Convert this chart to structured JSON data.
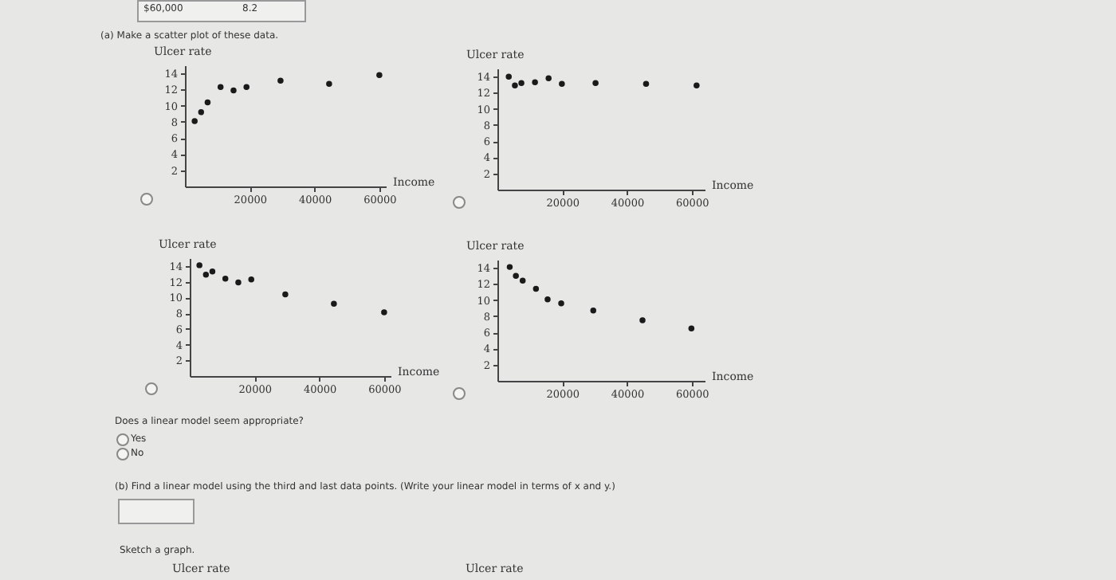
{
  "chart_data": [
    {
      "type": "scatter",
      "title": "(a) Make a scatter plot of these data.",
      "xlabel": "Income",
      "ylabel": "Ulcer rate",
      "x": [
        3000,
        5000,
        7000,
        11000,
        15000,
        19000,
        29500,
        44500,
        60000
      ],
      "series": [
        {
          "color": "#1a1a1a",
          "values": [
            8.1,
            9.2,
            10.4,
            12.3,
            11.9,
            12.3,
            13.1,
            12.7,
            13.8
          ]
        }
      ],
      "xlim": [
        0,
        62000
      ],
      "ylim": [
        0,
        15
      ],
      "xticks": [
        20000,
        40000,
        60000
      ],
      "yticks": [
        2,
        4,
        6,
        8,
        10,
        12,
        14
      ],
      "marker": "circle",
      "grid": false,
      "annotations": [
        "$60,000",
        "8.2"
      ]
    },
    {
      "type": "scatter",
      "xlabel": "Income",
      "ylabel": "Ulcer rate",
      "x": [
        3500,
        5400,
        7400,
        11600,
        15800,
        19900,
        30300,
        45900,
        61500
      ],
      "series": [
        {
          "color": "#1a1a1a",
          "values": [
            14.0,
            12.9,
            13.2,
            13.3,
            13.8,
            13.1,
            13.2,
            13.1,
            12.9
          ]
        }
      ],
      "xlim": [
        0,
        64000
      ],
      "ylim": [
        0,
        15
      ],
      "xticks": [
        20000,
        40000,
        60000
      ],
      "yticks": [
        2,
        4,
        6,
        8,
        10,
        12,
        14
      ],
      "marker": "circle",
      "grid": false
    },
    {
      "type": "scatter",
      "xlabel": "Income",
      "ylabel": "Ulcer rate",
      "x": [
        3000,
        5000,
        7000,
        11000,
        15000,
        19000,
        29500,
        44500,
        60000
      ],
      "series": [
        {
          "color": "#1a1a1a",
          "values": [
            14.1,
            12.9,
            13.3,
            12.4,
            11.9,
            12.3,
            10.4,
            9.2,
            8.1
          ]
        }
      ],
      "xlim": [
        0,
        62000
      ],
      "ylim": [
        0,
        15
      ],
      "xticks": [
        20000,
        40000,
        60000
      ],
      "yticks": [
        2,
        4,
        6,
        8,
        10,
        12,
        14
      ],
      "marker": "circle",
      "grid": false
    },
    {
      "type": "scatter",
      "xlabel": "Income",
      "ylabel": "Ulcer rate",
      "x": [
        3800,
        5700,
        7800,
        11900,
        15500,
        19700,
        29600,
        44800,
        59900
      ],
      "series": [
        {
          "color": "#1a1a1a",
          "values": [
            14.1,
            13.0,
            12.4,
            11.4,
            10.1,
            9.6,
            8.7,
            7.5,
            6.5
          ]
        }
      ],
      "xlim": [
        0,
        64000
      ],
      "ylim": [
        0,
        15
      ],
      "xticks": [
        20000,
        40000,
        60000
      ],
      "yticks": [
        2,
        4,
        6,
        8,
        10,
        12,
        14
      ],
      "marker": "circle",
      "grid": false,
      "annotations": [
        "Does a linear model seem appropriate?",
        "Yes",
        "No",
        "(b) Find a linear model using the third and last data points. (Write your linear model in terms of x and y.)",
        "Sketch a graph.",
        "Ulcer rate",
        "Ulcer rate"
      ]
    }
  ]
}
